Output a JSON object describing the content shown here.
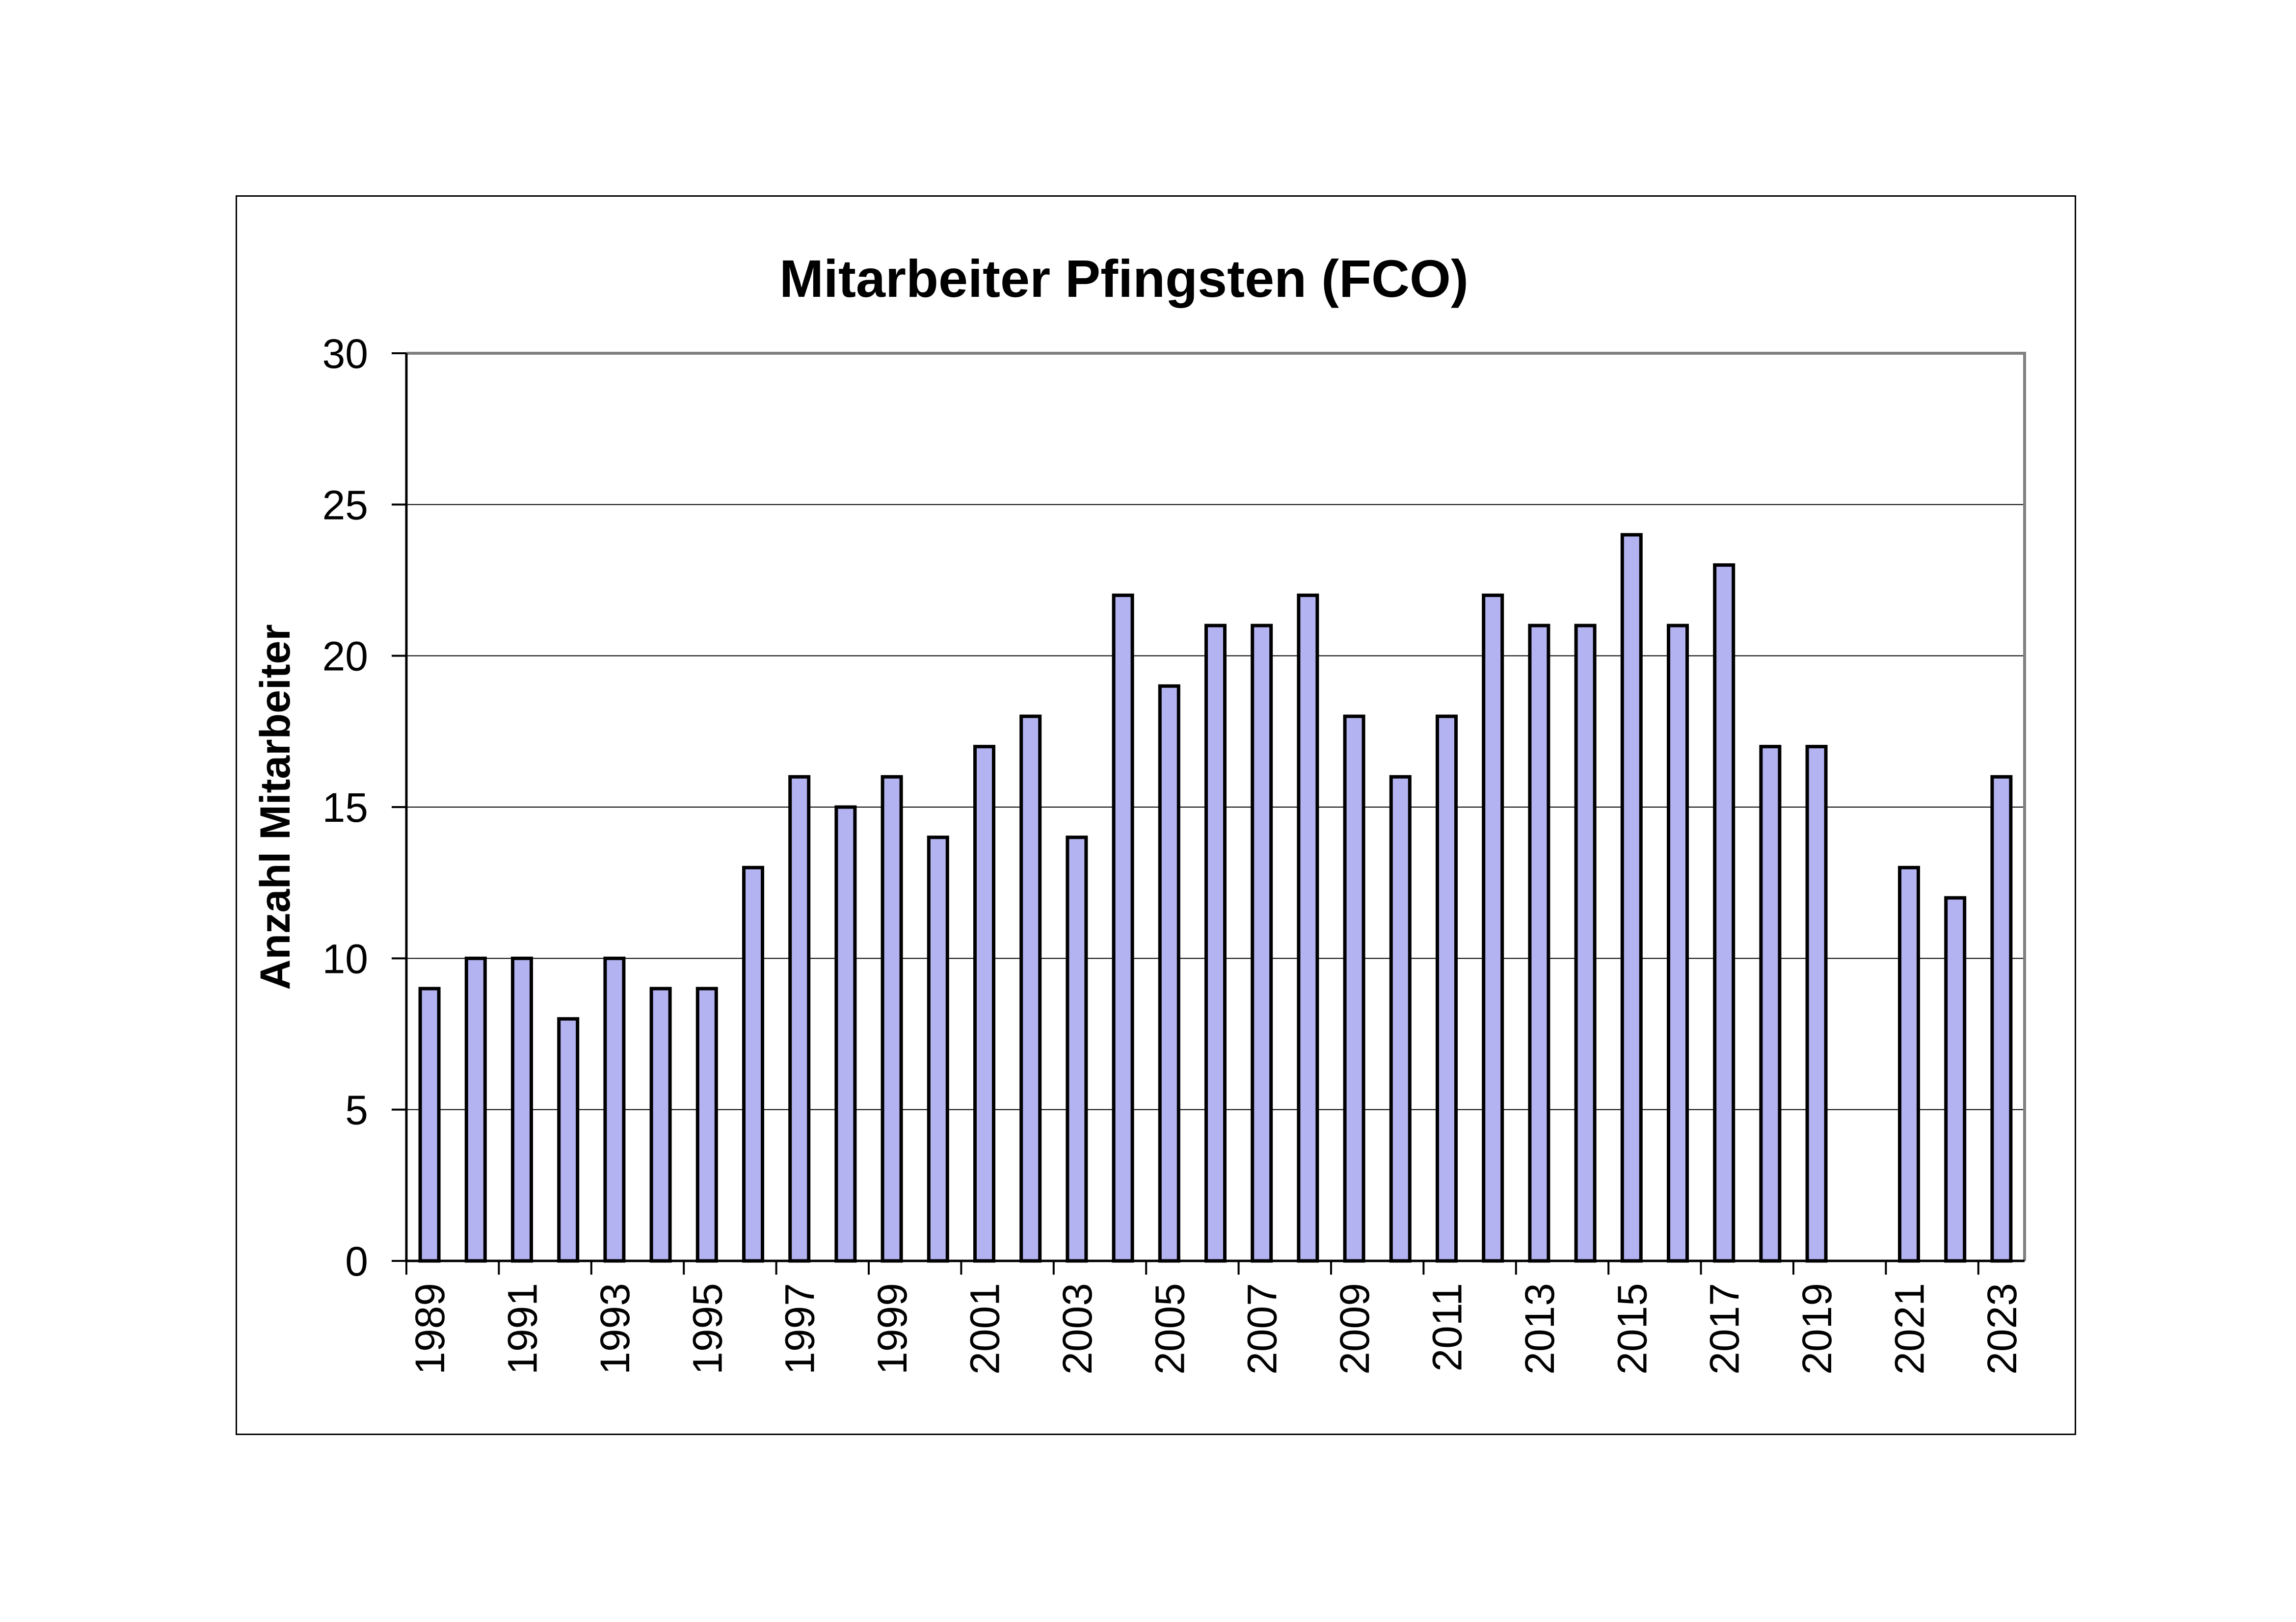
{
  "chart_data": {
    "type": "bar",
    "title": "Mitarbeiter Pfingsten (FCO)",
    "xlabel": "",
    "ylabel": "Anzahl Mitarbeiter",
    "ylim": [
      0,
      30
    ],
    "yticks": [
      0,
      5,
      10,
      15,
      20,
      25,
      30
    ],
    "grid": true,
    "legend": "none",
    "bar_color": "#b3b3f2",
    "bar_edge_color": "#000000",
    "categories": [
      1989,
      1990,
      1991,
      1992,
      1993,
      1994,
      1995,
      1996,
      1997,
      1998,
      1999,
      2000,
      2001,
      2002,
      2003,
      2004,
      2005,
      2006,
      2007,
      2008,
      2009,
      2010,
      2011,
      2012,
      2013,
      2014,
      2015,
      2016,
      2017,
      2018,
      2019,
      2020,
      2021,
      2022,
      2023
    ],
    "values": [
      9,
      10,
      10,
      8,
      10,
      9,
      9,
      13,
      16,
      15,
      16,
      14,
      17,
      18,
      14,
      22,
      19,
      21,
      21,
      22,
      18,
      16,
      18,
      22,
      21,
      21,
      24,
      21,
      23,
      17,
      17,
      null,
      13,
      12,
      16
    ],
    "xtick_labels": [
      "1989",
      "1991",
      "1993",
      "1995",
      "1997",
      "1999",
      "2001",
      "2003",
      "2005",
      "2007",
      "2009",
      "2011",
      "2013",
      "2015",
      "2017",
      "2019",
      "2021",
      "2023"
    ]
  }
}
